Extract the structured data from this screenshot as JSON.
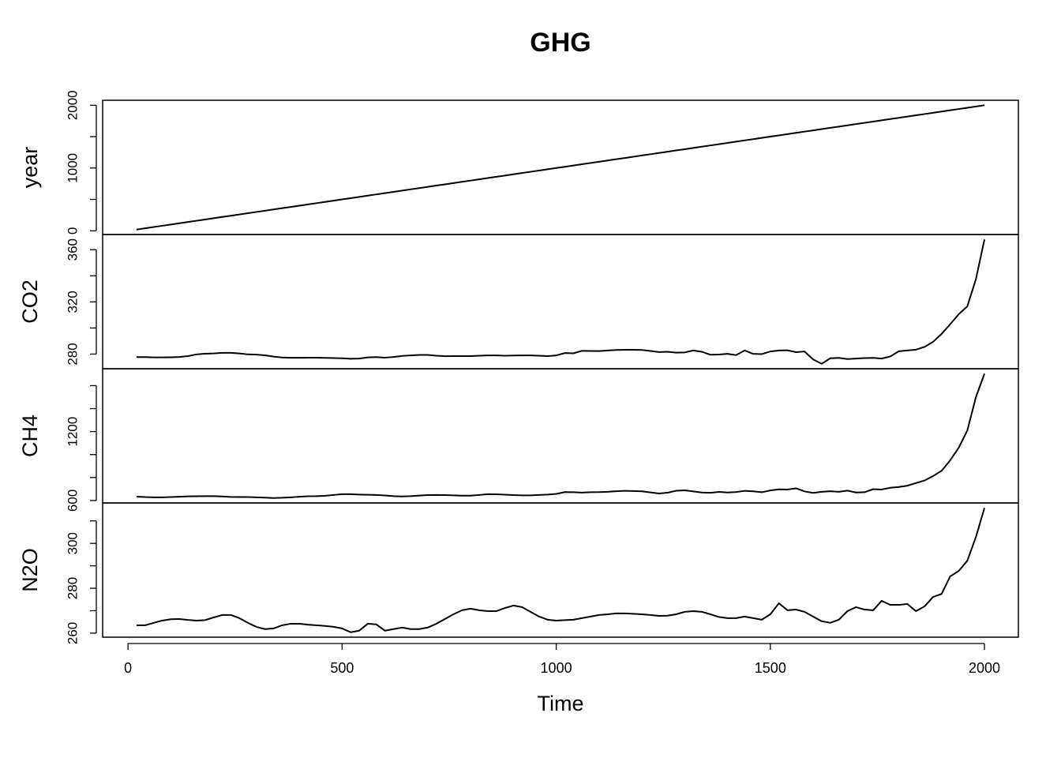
{
  "chart_data": {
    "type": "line",
    "title": "GHG",
    "x_label": "Time",
    "xlim": [
      -59.2,
      2079.2
    ],
    "xticks": [
      0,
      500,
      1000,
      1500,
      2000
    ],
    "color": "#000000",
    "x": [
      20,
      40,
      60,
      80,
      100,
      120,
      140,
      160,
      180,
      200,
      220,
      240,
      260,
      280,
      300,
      320,
      340,
      360,
      380,
      400,
      420,
      440,
      460,
      480,
      500,
      520,
      540,
      560,
      580,
      600,
      620,
      640,
      660,
      680,
      700,
      720,
      740,
      760,
      780,
      800,
      820,
      840,
      860,
      880,
      900,
      920,
      940,
      960,
      980,
      1000,
      1020,
      1040,
      1060,
      1080,
      1100,
      1120,
      1140,
      1160,
      1180,
      1200,
      1220,
      1240,
      1260,
      1280,
      1300,
      1320,
      1340,
      1360,
      1380,
      1400,
      1420,
      1440,
      1460,
      1480,
      1500,
      1520,
      1540,
      1560,
      1580,
      1600,
      1620,
      1640,
      1660,
      1680,
      1700,
      1720,
      1740,
      1760,
      1780,
      1800,
      1820,
      1840,
      1860,
      1880,
      1900,
      1920,
      1940,
      1960,
      1980,
      2000
    ],
    "panels": [
      {
        "name": "year",
        "ylim": [
          -59.2,
          2079.2
        ],
        "yticks": [
          0,
          1000,
          2000
        ],
        "yminor_ticks": [
          500,
          1500
        ],
        "values": [
          20,
          40,
          60,
          80,
          100,
          120,
          140,
          160,
          180,
          200,
          220,
          240,
          260,
          280,
          300,
          320,
          340,
          360,
          380,
          400,
          420,
          440,
          460,
          480,
          500,
          520,
          540,
          560,
          580,
          600,
          620,
          640,
          660,
          680,
          700,
          720,
          740,
          760,
          780,
          800,
          820,
          840,
          860,
          880,
          900,
          920,
          940,
          960,
          980,
          1000,
          1020,
          1040,
          1060,
          1080,
          1100,
          1120,
          1140,
          1160,
          1180,
          1200,
          1220,
          1240,
          1260,
          1280,
          1300,
          1320,
          1340,
          1360,
          1380,
          1400,
          1420,
          1440,
          1460,
          1480,
          1500,
          1520,
          1540,
          1560,
          1580,
          1600,
          1620,
          1640,
          1660,
          1680,
          1700,
          1720,
          1740,
          1760,
          1780,
          1800,
          1820,
          1840,
          1860,
          1880,
          1900,
          1920,
          1940,
          1960,
          1980,
          2000
        ]
      },
      {
        "name": "CO2",
        "ylim": [
          268.8,
          371.6
        ],
        "yticks": [
          280,
          320,
          360
        ],
        "yminor_ticks": [
          300,
          340
        ],
        "values": [
          277.7,
          277.7,
          277.5,
          277.5,
          277.6,
          277.8,
          278.5,
          279.8,
          280.3,
          280.5,
          281,
          281,
          280.5,
          279.8,
          279.6,
          279.1,
          278.1,
          277.4,
          277.2,
          277.2,
          277.3,
          277.3,
          277.1,
          277,
          276.8,
          276.4,
          276.6,
          277.5,
          277.7,
          277.3,
          277.8,
          278.6,
          279,
          279.4,
          279.4,
          278.8,
          278.4,
          278.5,
          278.5,
          278.5,
          278.8,
          279,
          279,
          278.8,
          278.9,
          279,
          279,
          278.8,
          278.5,
          279,
          280.8,
          280.6,
          282.5,
          282.4,
          282.3,
          282.8,
          283.2,
          283.3,
          283.3,
          283.2,
          282.4,
          281.6,
          281.8,
          281.1,
          281.3,
          282.8,
          281.8,
          279.5,
          279.7,
          280.2,
          279.2,
          282.8,
          280.2,
          280,
          282,
          282.8,
          282.9,
          281.5,
          282,
          275.9,
          272.6,
          276.8,
          277.1,
          276.2,
          276.6,
          277,
          277.1,
          276.6,
          278.2,
          282.2,
          282.8,
          283.4,
          285.5,
          289.4,
          295.5,
          302.9,
          310.6,
          316.6,
          337.3,
          367.8
        ]
      },
      {
        "name": "CH4",
        "ylim": [
          578.7,
          1747.3
        ],
        "yticks": [
          600,
          1200
        ],
        "yminor_ticks": [
          800,
          1000,
          1400,
          1600
        ],
        "values": [
          634,
          630,
          628,
          628,
          630,
          633,
          636,
          637,
          638,
          638,
          635,
          631,
          630,
          630,
          628,
          625,
          622,
          624,
          628,
          633,
          637,
          638,
          641,
          648,
          655,
          655,
          652,
          650,
          648,
          644,
          638,
          635,
          638,
          643,
          647,
          648,
          647,
          645,
          642,
          642,
          648,
          655,
          654,
          651,
          647,
          645,
          645,
          648,
          652,
          658,
          673,
          672,
          669,
          672,
          673,
          676,
          681,
          684,
          683,
          680,
          671,
          661,
          668,
          685,
          689,
          679,
          670,
          667,
          675,
          670,
          674,
          684,
          680,
          672,
          688,
          697,
          696,
          706,
          679,
          666,
          676,
          681,
          676,
          686,
          670,
          672,
          699,
          696,
          711,
          718,
          729,
          752,
          774,
          813,
          859,
          950,
          1060,
          1210,
          1500,
          1704
        ]
      },
      {
        "name": "N2O",
        "ylim": [
          258.2,
          318
        ],
        "yticks": [
          260,
          280,
          300
        ],
        "yminor_ticks": [
          270,
          290,
          310
        ],
        "values": [
          263.5,
          263.5,
          264.6,
          265.6,
          266.2,
          266.3,
          265.9,
          265.6,
          265.8,
          267,
          268.1,
          268.1,
          266.7,
          264.6,
          262.8,
          261.8,
          262.1,
          263.5,
          264.2,
          264.2,
          263.8,
          263.5,
          263.2,
          262.8,
          262.1,
          260.4,
          261.1,
          264.2,
          263.9,
          261.1,
          261.8,
          262.5,
          261.8,
          261.8,
          262.5,
          264.2,
          266.3,
          268.4,
          270.2,
          270.9,
          270.2,
          269.8,
          269.8,
          271.2,
          272.3,
          271.6,
          269.5,
          267.4,
          266,
          265.6,
          265.8,
          266,
          266.7,
          267.4,
          268.1,
          268.4,
          268.8,
          268.8,
          268.6,
          268.4,
          268.1,
          267.7,
          267.8,
          268.4,
          269.5,
          269.8,
          269.5,
          268.4,
          267.2,
          266.7,
          266.7,
          267.4,
          266.7,
          266,
          268.4,
          273.3,
          270.2,
          270.5,
          269.5,
          267.4,
          265.3,
          264.6,
          266,
          269.8,
          271.6,
          270.5,
          270.2,
          274.4,
          272.6,
          272.6,
          273,
          269.8,
          271.9,
          276.1,
          277.5,
          285.3,
          287.7,
          292.3,
          302.8,
          315.8
        ]
      }
    ]
  }
}
